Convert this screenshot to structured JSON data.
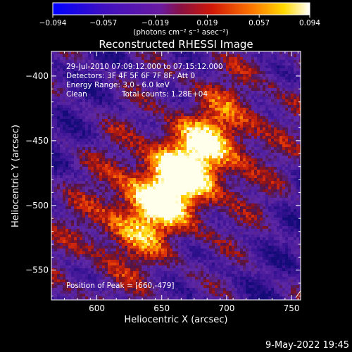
{
  "chart_data": {
    "type": "heatmap",
    "title": "Reconstructed RHESSI Image",
    "xlabel": "Heliocentric X (arcsec)",
    "ylabel": "Heliocentric Y (arcsec)",
    "xlim": [
      565,
      757
    ],
    "ylim": [
      -573,
      -381
    ],
    "x_ticks": [
      {
        "value": 600,
        "label": "600"
      },
      {
        "value": 650,
        "label": "650"
      },
      {
        "value": 700,
        "label": "700"
      },
      {
        "value": 750,
        "label": "750"
      }
    ],
    "y_ticks": [
      {
        "value": -400,
        "label": "−400"
      },
      {
        "value": -450,
        "label": "−450"
      },
      {
        "value": -500,
        "label": "−500"
      },
      {
        "value": -550,
        "label": "−550"
      }
    ],
    "colorbar": {
      "min": -0.094,
      "max": 0.094,
      "colormap": "blue-purple-red-yellow-white",
      "ticks": [
        {
          "value": -0.094,
          "label": "−0.094"
        },
        {
          "value": -0.057,
          "label": "−0.057"
        },
        {
          "value": -0.019,
          "label": "−0.019"
        },
        {
          "value": 0.019,
          "label": "0.019"
        },
        {
          "value": 0.057,
          "label": "0.057"
        },
        {
          "value": 0.094,
          "label": "0.094"
        }
      ],
      "unit_label": "(photons cm⁻² s⁻¹ asec⁻²)"
    },
    "annotations": [
      "29-Jul-2010 07:09:12.000 to 07:15:12.000",
      "Detectors: 3F 4F 5F 6F 7F 8F, Att 0",
      "Energy Range: 3.0 - 6.0 keV",
      "Clean",
      "Total counts: 1.28E+04"
    ],
    "peak_label": "Position of Peak = [660,-479]",
    "peak": {
      "x": 660,
      "y": -479,
      "value": 0.094
    }
  },
  "footer": {
    "date": "9-May-2022 19:45"
  },
  "colors": {
    "background": "#000000",
    "text": "#ffffff"
  }
}
